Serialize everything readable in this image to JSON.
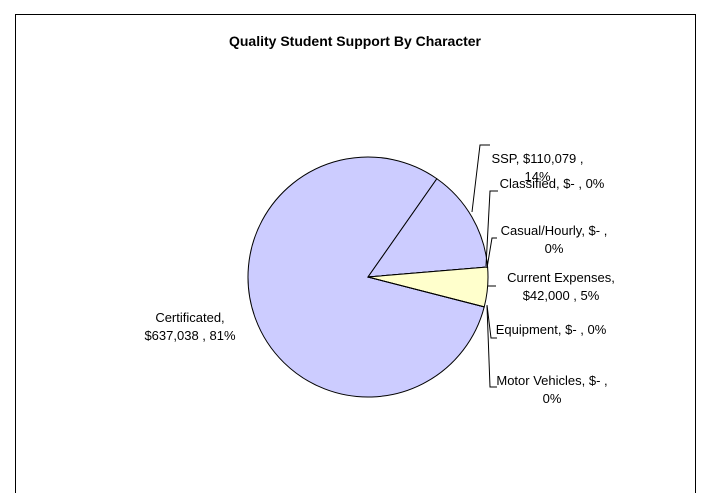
{
  "chart_data": {
    "type": "pie",
    "title": "Quality Student Support By Character",
    "values": [
      637038,
      110079,
      0,
      0,
      42000,
      0,
      0
    ],
    "value_labels": [
      "Certificated, $637,038 , 81%",
      "SSP, $110,079 , 14%",
      "Classified, $- , 0%",
      "Casual/Hourly, $- , 0%",
      "Current Expenses, $42,000 , 5%",
      "Equipment, $- , 0%",
      "Motor Vehicles, $- , 0%"
    ],
    "colors": [
      "#ccccff",
      "#ccccff",
      "#993366",
      "#ccffff",
      "#ffffcc",
      "#660066",
      "#ff8080"
    ]
  }
}
